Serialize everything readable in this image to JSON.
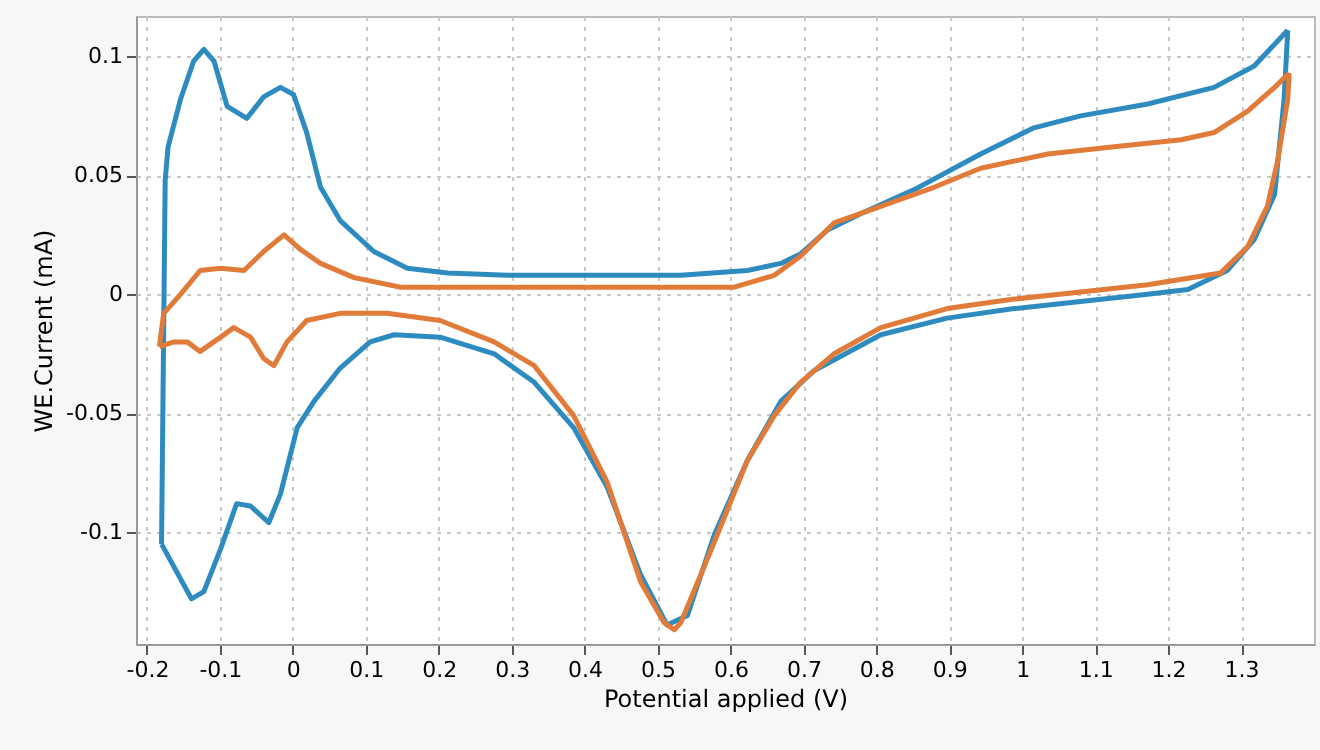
{
  "chart_data": {
    "type": "line",
    "xlabel": "Potential applied (V)",
    "ylabel": "WE.Current (mA)",
    "xlim": [
      -0.215,
      1.4
    ],
    "ylim": [
      -0.147,
      0.117
    ],
    "xticks": [
      -0.2,
      -0.1,
      0,
      0.1,
      0.2,
      0.3,
      0.4,
      0.5,
      0.6,
      0.7,
      0.8,
      0.9,
      1,
      1.1,
      1.2,
      1.3
    ],
    "yticks": [
      -0.1,
      -0.05,
      0,
      0.05,
      0.1
    ],
    "grid": true,
    "marker": "none",
    "line_style": "solid",
    "series": [
      {
        "color": "#2e8bc0",
        "x": [
          -0.18,
          -0.139,
          -0.122,
          -0.099,
          -0.077,
          -0.058,
          -0.033,
          -0.017,
          0.006,
          0.029,
          0.065,
          0.106,
          0.139,
          0.202,
          0.276,
          0.331,
          0.385,
          0.431,
          0.477,
          0.513,
          0.541,
          0.578,
          0.623,
          0.669,
          0.715,
          0.806,
          0.897,
          0.989,
          1.08,
          1.172,
          1.227,
          1.281,
          1.318,
          1.346,
          1.359,
          1.364
        ],
        "values": [
          -0.105,
          -0.128,
          -0.125,
          -0.107,
          -0.088,
          -0.089,
          -0.096,
          -0.084,
          -0.056,
          -0.045,
          -0.031,
          -0.02,
          -0.017,
          -0.018,
          -0.025,
          -0.037,
          -0.056,
          -0.081,
          -0.118,
          -0.139,
          -0.135,
          -0.101,
          -0.07,
          -0.045,
          -0.032,
          -0.017,
          -0.01,
          -0.006,
          -0.003,
          0,
          0.002,
          0.01,
          0.023,
          0.042,
          0.082,
          0.111
        ]
      },
      {
        "color": "#2e8bc0",
        "x": [
          1.364,
          1.318,
          1.263,
          1.172,
          1.08,
          1.016,
          0.943,
          0.852,
          0.779,
          0.733,
          0.696,
          0.669,
          0.623,
          0.532,
          0.294,
          0.212,
          0.157,
          0.111,
          0.065,
          0.038,
          0.019,
          0.001,
          -0.017,
          -0.04,
          -0.063,
          -0.09,
          -0.108,
          -0.122,
          -0.136,
          -0.154,
          -0.171,
          -0.175,
          -0.18
        ],
        "values": [
          0.111,
          0.096,
          0.087,
          0.08,
          0.075,
          0.07,
          0.059,
          0.044,
          0.034,
          0.027,
          0.017,
          0.013,
          0.01,
          0.008,
          0.008,
          0.009,
          0.011,
          0.018,
          0.031,
          0.045,
          0.068,
          0.084,
          0.087,
          0.083,
          0.074,
          0.079,
          0.098,
          0.103,
          0.098,
          0.082,
          0.062,
          0.048,
          -0.105
        ]
      },
      {
        "color": "#e07b39",
        "x": [
          -0.183,
          -0.177,
          -0.154,
          -0.127,
          -0.099,
          -0.067,
          -0.04,
          -0.012,
          0.01,
          0.038,
          0.084,
          0.148,
          0.221,
          0.532,
          0.605,
          0.66,
          0.696,
          0.742,
          0.806,
          0.879,
          0.943,
          1.035,
          1.126,
          1.218,
          1.263,
          1.309,
          1.346,
          1.366
        ],
        "values": [
          -0.022,
          -0.008,
          0,
          0.01,
          0.011,
          0.01,
          0.018,
          0.025,
          0.019,
          0.013,
          0.007,
          0.003,
          0.003,
          0.003,
          0.003,
          0.008,
          0.016,
          0.03,
          0.037,
          0.045,
          0.053,
          0.059,
          0.062,
          0.065,
          0.068,
          0.077,
          0.087,
          0.093
        ]
      },
      {
        "color": "#e07b39",
        "x": [
          1.366,
          1.364,
          1.35,
          1.336,
          1.309,
          1.272,
          1.172,
          1.08,
          0.989,
          0.897,
          0.806,
          0.742,
          0.696,
          0.66,
          0.623,
          0.578,
          0.532,
          0.523,
          0.509,
          0.477,
          0.431,
          0.385,
          0.331,
          0.276,
          0.202,
          0.129,
          0.065,
          0.019,
          -0.008,
          -0.026,
          -0.04,
          -0.058,
          -0.081,
          -0.099,
          -0.127,
          -0.145,
          -0.163,
          -0.183
        ],
        "values": [
          0.093,
          0.082,
          0.056,
          0.037,
          0.02,
          0.009,
          0.004,
          0.001,
          -0.002,
          -0.006,
          -0.014,
          -0.025,
          -0.037,
          -0.051,
          -0.07,
          -0.104,
          -0.138,
          -0.141,
          -0.138,
          -0.121,
          -0.079,
          -0.051,
          -0.03,
          -0.02,
          -0.011,
          -0.008,
          -0.008,
          -0.011,
          -0.02,
          -0.03,
          -0.027,
          -0.018,
          -0.014,
          -0.018,
          -0.024,
          -0.02,
          -0.02,
          -0.022
        ]
      }
    ]
  }
}
